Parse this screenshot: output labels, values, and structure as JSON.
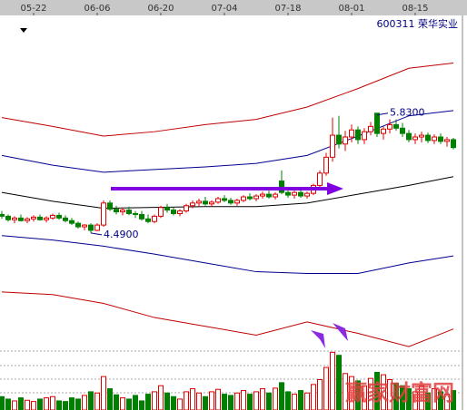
{
  "chart_data": {
    "type": "candlestick",
    "title": "600311 荣华实业",
    "watermark": "赢家财富网",
    "up_color": "#e00000",
    "down_color": "#008000",
    "volume_color_up": "#e00000",
    "volume_color_down": "#008000",
    "xticks": [
      {
        "value": 5,
        "label": "05-22"
      },
      {
        "value": 15,
        "label": "06-06"
      },
      {
        "value": 25,
        "label": "06-20"
      },
      {
        "value": 35,
        "label": "07-04"
      },
      {
        "value": 45,
        "label": "07-18"
      },
      {
        "value": 55,
        "label": "08-01"
      },
      {
        "value": 65,
        "label": "08-15"
      }
    ],
    "ylim": [
      3.17,
      6.95
    ],
    "vlim": [
      0,
      100
    ],
    "open": [
      4.7,
      4.68,
      4.64,
      4.66,
      4.63,
      4.65,
      4.67,
      4.64,
      4.66,
      4.69,
      4.66,
      4.63,
      4.6,
      4.56,
      4.58,
      4.52,
      4.58,
      4.83,
      4.76,
      4.73,
      4.75,
      4.71,
      4.7,
      4.65,
      4.62,
      4.68,
      4.78,
      4.75,
      4.71,
      4.74,
      4.8,
      4.83,
      4.85,
      4.82,
      4.84,
      4.88,
      4.86,
      4.83,
      4.86,
      4.9,
      4.88,
      4.91,
      4.93,
      4.9,
      5.08,
      4.95,
      4.92,
      4.95,
      4.91,
      4.94,
      5.03,
      5.17,
      5.35,
      5.6,
      5.5,
      5.58,
      5.66,
      5.55,
      5.64,
      5.85,
      5.62,
      5.67,
      5.72,
      5.68,
      5.62,
      5.55,
      5.58,
      5.6,
      5.54,
      5.58,
      5.53,
      5.55
    ],
    "high": [
      4.74,
      4.7,
      4.68,
      4.7,
      4.67,
      4.69,
      4.7,
      4.68,
      4.71,
      4.72,
      4.69,
      4.66,
      4.62,
      4.59,
      4.6,
      4.6,
      4.86,
      4.86,
      4.8,
      4.78,
      4.79,
      4.74,
      4.74,
      4.7,
      4.7,
      4.8,
      4.82,
      4.78,
      4.76,
      4.82,
      4.86,
      4.88,
      4.9,
      4.86,
      4.9,
      4.92,
      4.89,
      4.88,
      4.92,
      4.94,
      4.93,
      4.96,
      4.97,
      4.95,
      5.2,
      4.99,
      4.97,
      4.98,
      4.96,
      5.05,
      5.2,
      5.4,
      5.8,
      5.82,
      5.65,
      5.72,
      5.7,
      5.68,
      5.75,
      5.83,
      5.7,
      5.78,
      5.78,
      5.74,
      5.66,
      5.62,
      5.64,
      5.63,
      5.61,
      5.62,
      5.58,
      5.57
    ],
    "low": [
      4.65,
      4.62,
      4.6,
      4.62,
      4.6,
      4.62,
      4.63,
      4.61,
      4.64,
      4.64,
      4.61,
      4.58,
      4.54,
      4.52,
      4.49,
      4.51,
      4.56,
      4.74,
      4.7,
      4.69,
      4.69,
      4.66,
      4.63,
      4.6,
      4.6,
      4.66,
      4.72,
      4.69,
      4.68,
      4.72,
      4.77,
      4.79,
      4.8,
      4.79,
      4.82,
      4.84,
      4.81,
      4.8,
      4.84,
      4.86,
      4.85,
      4.88,
      4.88,
      4.87,
      4.93,
      4.89,
      4.88,
      4.89,
      4.88,
      4.92,
      5.01,
      5.14,
      5.3,
      5.45,
      5.42,
      5.52,
      5.5,
      5.5,
      5.6,
      5.58,
      5.55,
      5.62,
      5.65,
      5.58,
      5.52,
      5.5,
      5.52,
      5.51,
      5.5,
      5.5,
      5.47,
      5.44
    ],
    "close": [
      4.68,
      4.64,
      4.66,
      4.63,
      4.65,
      4.67,
      4.64,
      4.66,
      4.69,
      4.66,
      4.63,
      4.6,
      4.56,
      4.58,
      4.52,
      4.58,
      4.83,
      4.76,
      4.73,
      4.75,
      4.71,
      4.7,
      4.65,
      4.62,
      4.68,
      4.78,
      4.75,
      4.71,
      4.74,
      4.8,
      4.83,
      4.85,
      4.82,
      4.84,
      4.88,
      4.86,
      4.83,
      4.86,
      4.9,
      4.88,
      4.91,
      4.93,
      4.9,
      4.93,
      4.95,
      4.92,
      4.95,
      4.91,
      4.94,
      5.03,
      5.17,
      5.35,
      5.6,
      5.5,
      5.58,
      5.66,
      5.55,
      5.64,
      5.7,
      5.62,
      5.67,
      5.72,
      5.68,
      5.62,
      5.55,
      5.58,
      5.6,
      5.54,
      5.58,
      5.53,
      5.55,
      5.46
    ],
    "volume": [
      22,
      18,
      15,
      20,
      16,
      14,
      18,
      20,
      22,
      15,
      14,
      20,
      18,
      24,
      30,
      28,
      55,
      35,
      25,
      20,
      18,
      24,
      15,
      26,
      30,
      40,
      28,
      22,
      18,
      30,
      35,
      28,
      22,
      30,
      34,
      26,
      24,
      28,
      32,
      26,
      30,
      35,
      28,
      36,
      45,
      30,
      26,
      32,
      28,
      42,
      50,
      70,
      95,
      90,
      60,
      55,
      48,
      40,
      52,
      62,
      58,
      50,
      44,
      40,
      35,
      30,
      40,
      28,
      35,
      30,
      26,
      32
    ],
    "lines": [
      {
        "color": "#c00000",
        "x": [
          0,
          8,
          16,
          24,
          32,
          40,
          48,
          56,
          64,
          71
        ],
        "values": [
          5.8,
          5.7,
          5.59,
          5.64,
          5.72,
          5.78,
          5.92,
          6.13,
          6.36,
          6.42
        ]
      },
      {
        "color": "#000090",
        "x": [
          0,
          8,
          16,
          24,
          32,
          40,
          48,
          56,
          64,
          71
        ],
        "values": [
          5.37,
          5.26,
          5.18,
          5.21,
          5.24,
          5.28,
          5.37,
          5.59,
          5.82,
          5.88
        ]
      },
      {
        "color": "#000000",
        "x": [
          0,
          8,
          16,
          24,
          32,
          40,
          48,
          56,
          64,
          71
        ],
        "values": [
          4.95,
          4.85,
          4.77,
          4.78,
          4.79,
          4.79,
          4.83,
          4.93,
          5.03,
          5.13
        ]
      },
      {
        "color": "#000090",
        "x": [
          0,
          8,
          16,
          24,
          32,
          40,
          48,
          56,
          64,
          71
        ],
        "values": [
          4.46,
          4.41,
          4.34,
          4.25,
          4.15,
          4.05,
          4.03,
          4.03,
          4.15,
          4.23
        ]
      },
      {
        "color": "#c00000",
        "x": [
          0,
          8,
          16,
          24,
          32,
          40,
          48,
          56,
          64,
          71
        ],
        "values": [
          3.82,
          3.79,
          3.69,
          3.53,
          3.43,
          3.33,
          3.48,
          3.35,
          3.2,
          3.4
        ]
      }
    ],
    "annotations": [
      {
        "index": 14,
        "value": 4.49,
        "label": "4.4900"
      },
      {
        "index": 59,
        "value": 5.83,
        "label": "5.8300"
      }
    ]
  }
}
